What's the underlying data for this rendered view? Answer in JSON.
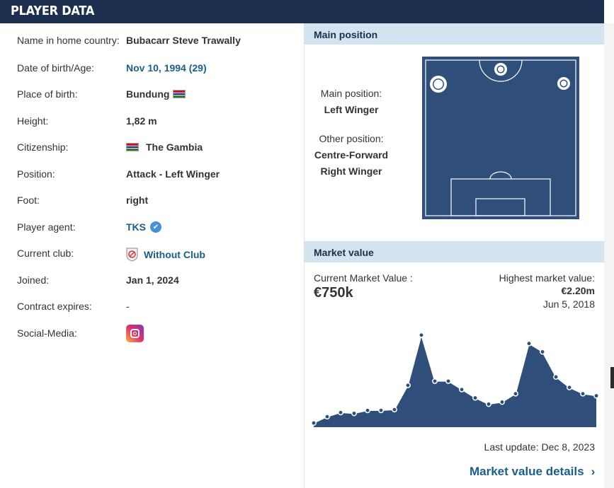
{
  "header": {
    "title": "PLAYER DATA"
  },
  "player_data": {
    "rows": [
      {
        "label": "Name in home country:",
        "value": "Bubacarr Steve Trawally"
      },
      {
        "label": "Date of birth/Age:",
        "value": "Nov 10, 1994 (29)"
      },
      {
        "label": "Place of birth:",
        "value": "Bundung"
      },
      {
        "label": "Height:",
        "value": "1,82 m"
      },
      {
        "label": "Citizenship:",
        "value": "The Gambia"
      },
      {
        "label": "Position:",
        "value": "Attack - Left Winger"
      },
      {
        "label": "Foot:",
        "value": "right"
      },
      {
        "label": "Player agent:",
        "value": "TKS"
      },
      {
        "label": "Current club:",
        "value": "Without Club"
      },
      {
        "label": "Joined:",
        "value": "Jan 1, 2024"
      },
      {
        "label": "Contract expires:",
        "value": "-"
      },
      {
        "label": "Social-Media:",
        "value": ""
      }
    ]
  },
  "main_position": {
    "section_title": "Main position",
    "main_label": "Main position:",
    "main_value": "Left Winger",
    "other_label": "Other position:",
    "other_values": [
      "Centre-Forward",
      "Right Winger"
    ]
  },
  "market_value": {
    "section_title": "Market value",
    "current_label": "Current Market Value :",
    "current_value": "€750k",
    "highest_label": "Highest market value:",
    "highest_value": "€2.20m",
    "highest_date": "Jun 5, 2018",
    "last_update": "Last update: Dec 8, 2023",
    "details_link": "Market value details",
    "chevron": "›"
  },
  "colors": {
    "header_bg": "#1d2f4e",
    "section_bg": "#d3e3ef",
    "link": "#1a5e8a",
    "pitch": "#2f4f7a",
    "chart_fill": "#2f4f7a"
  },
  "chart_data": {
    "type": "area",
    "title": "",
    "xlabel": "",
    "ylabel": "",
    "series": [
      {
        "values": [
          0.1,
          0.25,
          0.35,
          0.33,
          0.4,
          0.4,
          0.42,
          1.0,
          2.2,
          1.1,
          1.1,
          0.9,
          0.7,
          0.55,
          0.6,
          0.8,
          2.0,
          1.8,
          1.2,
          0.95,
          0.8,
          0.75
        ]
      }
    ],
    "ylim": [
      0,
      2.4
    ],
    "grid": false,
    "legend": "none"
  }
}
